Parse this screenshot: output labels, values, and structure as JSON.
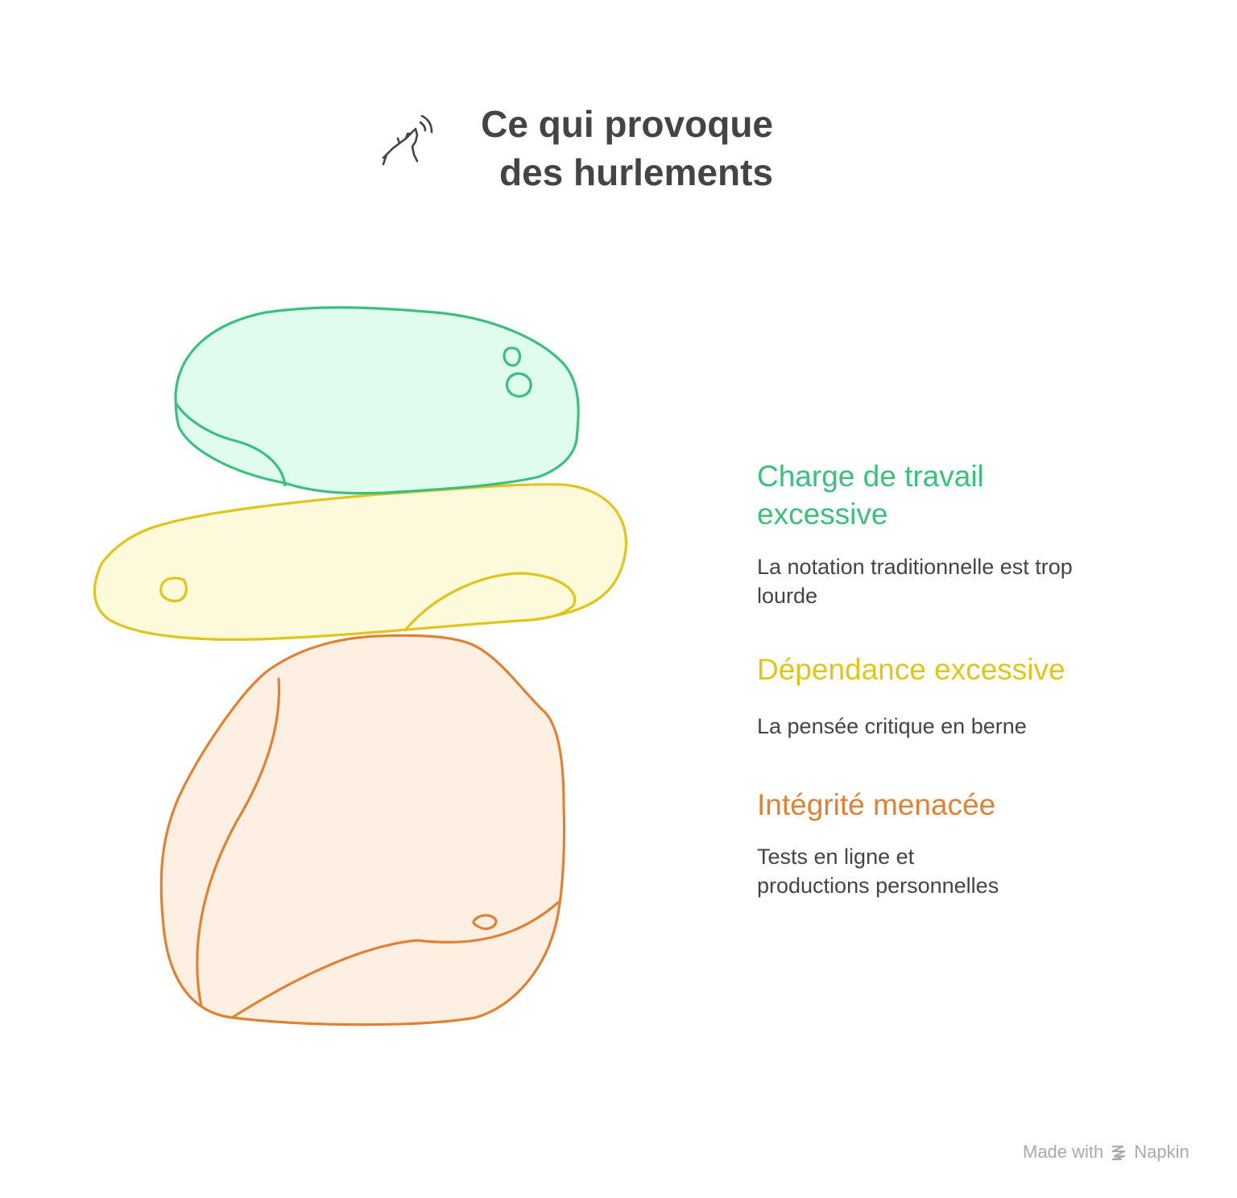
{
  "title": {
    "line1": "Ce qui provoque",
    "line2": "des hurlements"
  },
  "icon": "howling-wolf-icon",
  "items": [
    {
      "heading_line1": "Charge de travail",
      "heading_line2": "excessive",
      "desc_line1": "La notation traditionnelle est trop",
      "desc_line2": "lourde",
      "color": "#3dbf7e",
      "fill": "#e0fcee"
    },
    {
      "heading_line1": "Dépendance excessive",
      "desc_line1": "La pensée critique en berne",
      "color": "#e0c51c",
      "fill": "#fdfadc"
    },
    {
      "heading_line1": "Intégrité menacée",
      "desc_line1": "Tests en ligne et",
      "desc_line2": "productions personnelles",
      "color": "#e08236",
      "fill": "#fdf0e3"
    }
  ],
  "footer": {
    "made_with": "Made with",
    "brand": "Napkin"
  }
}
